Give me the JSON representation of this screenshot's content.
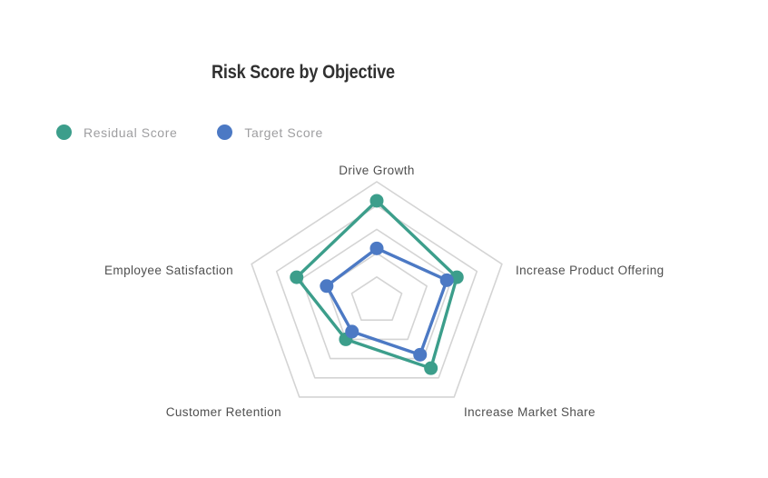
{
  "header": {
    "title": "Risk Score by Objective"
  },
  "legend": {
    "position": "top-left",
    "items": [
      {
        "label": "Residual Score",
        "color": "#3C9E8B"
      },
      {
        "label": "Target Score",
        "color": "#4C79C4"
      }
    ]
  },
  "chart_data": {
    "type": "radar",
    "title": "Risk Score by Objective",
    "categories": [
      "Drive Growth",
      "Increase Product Offering",
      "Increase Market Share",
      "Customer Retention",
      "Employee Satisfaction"
    ],
    "series": [
      {
        "name": "Residual Score",
        "color": "#3C9E8B",
        "values": [
          4.2,
          3.2,
          3.5,
          2.0,
          3.2
        ]
      },
      {
        "name": "Target Score",
        "color": "#4C79C4",
        "values": [
          2.2,
          2.8,
          2.8,
          1.6,
          2.0
        ]
      }
    ],
    "scale": {
      "min": 0,
      "max": 5,
      "rings": 5,
      "grid_shape": "pentagon",
      "grid_color": "#D4D4D4",
      "spokes": false,
      "tick_labels_visible": false
    },
    "legend_position": "top-left",
    "background": "#FFFFFF"
  }
}
